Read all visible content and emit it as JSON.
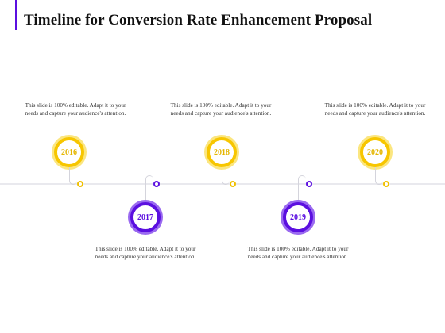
{
  "title": "Timeline for Conversion Rate Enhancement Proposal",
  "colors": {
    "accent": "#5b0fe0",
    "gold": "#f7c600",
    "purple": "#5b0fe0",
    "axis": "#e9e9ee"
  },
  "milestones": [
    {
      "year": "2016",
      "color": "gold",
      "position": "above",
      "text": "This slide is 100% editable. Adapt it to your needs and capture your audience's attention."
    },
    {
      "year": "2017",
      "color": "purple",
      "position": "below",
      "text": "This slide is 100% editable. Adapt it to your needs and capture your audience's attention."
    },
    {
      "year": "2018",
      "color": "gold",
      "position": "above",
      "text": "This slide is 100% editable. Adapt it to your needs and capture your audience's attention."
    },
    {
      "year": "2019",
      "color": "purple",
      "position": "below",
      "text": "This slide is 100% editable. Adapt it to your needs and capture your audience's attention."
    },
    {
      "year": "2020",
      "color": "gold",
      "position": "above",
      "text": "This slide is 100% editable. Adapt it to your needs and capture your audience's attention."
    }
  ]
}
